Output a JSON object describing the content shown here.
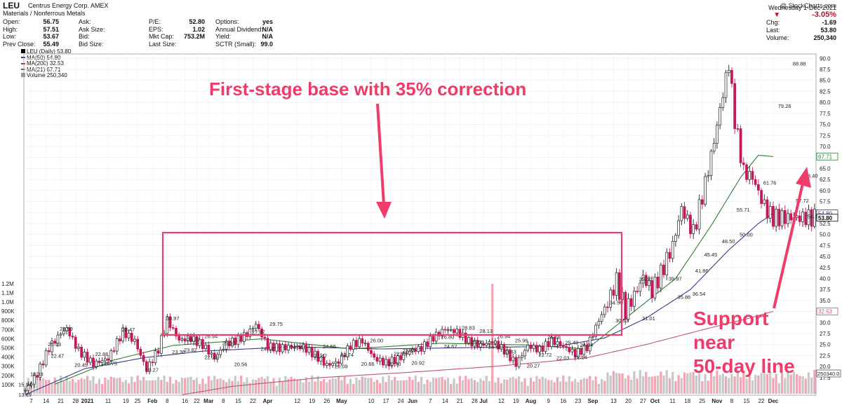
{
  "header": {
    "ticker": "LEU",
    "company": "Centrus Energy Corp. AMEX",
    "sector": "Materials / Nonferrous Metals",
    "copyright": "@ StockCharts.com",
    "col1": [
      {
        "label": "Open:",
        "value": "56.75"
      },
      {
        "label": "High:",
        "value": "57.51"
      },
      {
        "label": "Low:",
        "value": "53.67"
      },
      {
        "label": "Prev Close:",
        "value": "55.49"
      }
    ],
    "col2": [
      {
        "label": "Ask:",
        "value": ""
      },
      {
        "label": "Ask Size:",
        "value": ""
      },
      {
        "label": "Bid:",
        "value": ""
      },
      {
        "label": "Bid Size:",
        "value": ""
      }
    ],
    "col3": [
      {
        "label": "P/E:",
        "value": "52.80"
      },
      {
        "label": "EPS:",
        "value": "1.02"
      },
      {
        "label": "Mkt Cap:",
        "value": "753.2M"
      },
      {
        "label": "Last Size:",
        "value": ""
      }
    ],
    "col4": [
      {
        "label": "Options:",
        "value": "yes"
      },
      {
        "label": "Annual Dividend:",
        "value": "N/A"
      },
      {
        "label": "Yield:",
        "value": "N/A"
      },
      {
        "label": "SCTR (Small):",
        "value": "99.0"
      }
    ],
    "date": "Wednesday  1-Dec-2021",
    "change_pct": "-3.05%",
    "chg_label": "Chg:",
    "chg_value": "-1.69",
    "last_label": "Last:",
    "last_value": "53.80",
    "volume_label": "Volume:",
    "volume_value": "250,340"
  },
  "legend": [
    {
      "text": "LEU (Daily) 53.80",
      "color": "#000000"
    },
    {
      "text": "MA(50) 54.80",
      "color": "#333399"
    },
    {
      "text": "MA(200) 32.53",
      "color": "#b03050"
    },
    {
      "text": "MA(21) 67.71",
      "color": "#2e7d32"
    },
    {
      "text": "Volume 250,340",
      "color": "#555555"
    }
  ],
  "annotations": {
    "title": "First-stage base with 35% correction",
    "support_lines": [
      "Support",
      "near",
      "50-day line"
    ]
  },
  "chart_data": {
    "type": "candlestick",
    "title": "LEU (Daily) 53.80",
    "ylim": [
      13.5,
      91
    ],
    "y_ticks": [
      "17.5",
      "20.0",
      "22.5",
      "25.0",
      "27.5",
      "30.0",
      "32.5",
      "35.0",
      "37.5",
      "40.0",
      "42.5",
      "45.0",
      "47.5",
      "50.0",
      "52.5",
      "55.0",
      "57.5",
      "60.0",
      "62.5",
      "65.0",
      "67.5",
      "70.0",
      "72.5",
      "75.0",
      "77.5",
      "80.0",
      "82.5",
      "85.0",
      "87.5",
      "90.0"
    ],
    "y_tick_values": [
      17.5,
      20,
      22.5,
      25,
      27.5,
      30,
      32.5,
      35,
      37.5,
      40,
      42.5,
      45,
      47.5,
      50,
      52.5,
      55,
      57.5,
      60,
      62.5,
      65,
      67.5,
      70,
      72.5,
      75,
      77.5,
      80,
      82.5,
      85,
      87.5,
      90
    ],
    "x_axis_labels": [
      "7",
      "14",
      "21",
      "28",
      "2021",
      "11",
      "19",
      "25",
      "Feb",
      "8",
      "16",
      "22",
      "Mar",
      "8",
      "15",
      "22",
      "Apr",
      "12",
      "19",
      "26",
      "May",
      "10",
      "17",
      "24",
      "Jun",
      "7",
      "14",
      "21",
      "28",
      "Jul",
      "12",
      "19",
      "Aug",
      "9",
      "16",
      "23",
      "Sep",
      "13",
      "20",
      "27",
      "Oct",
      "11",
      "18",
      "25",
      "Nov",
      "8",
      "15",
      "22",
      "Dec"
    ],
    "x_axis_label_index": [
      2,
      7,
      12,
      17,
      21,
      28,
      34,
      38,
      43,
      48,
      54,
      58,
      62,
      67,
      72,
      77,
      82,
      92,
      97,
      102,
      107,
      117,
      122,
      127,
      131,
      137,
      142,
      147,
      152,
      155,
      161,
      166,
      171,
      177,
      182,
      187,
      192,
      199,
      204,
      209,
      213,
      219,
      224,
      229,
      234,
      239,
      244,
      249,
      253
    ],
    "volume_ticks": [
      "100K",
      "200K",
      "300K",
      "400K",
      "500K",
      "600K",
      "700K",
      "800K",
      "900K",
      "1.0M",
      "1.1M",
      "1.2M"
    ],
    "volume_tick_values": [
      100000,
      200000,
      300000,
      400000,
      500000,
      600000,
      700000,
      800000,
      900000,
      1000000,
      1100000,
      1200000
    ],
    "volume_last": "250340.0",
    "ma_last": {
      "ma21": "67.71",
      "ma50": "54.80",
      "ma200": "32.53",
      "price": "53.80"
    },
    "price_points": [
      [
        0,
        14.6
      ],
      [
        4,
        18.3
      ],
      [
        8,
        24.2
      ],
      [
        12,
        27.6
      ],
      [
        14,
        28.6
      ],
      [
        18,
        23.6
      ],
      [
        23,
        20.6
      ],
      [
        28,
        21.8
      ],
      [
        33,
        27.9
      ],
      [
        37,
        25.8
      ],
      [
        41,
        19.3
      ],
      [
        45,
        23.9
      ],
      [
        48,
        30.6
      ],
      [
        52,
        26.0
      ],
      [
        56,
        26.4
      ],
      [
        60,
        24.9
      ],
      [
        64,
        21.9
      ],
      [
        68,
        25.2
      ],
      [
        72,
        26.1
      ],
      [
        75,
        27.4
      ],
      [
        78,
        29.6
      ],
      [
        82,
        24.6
      ],
      [
        86,
        24.2
      ],
      [
        90,
        24.5
      ],
      [
        94,
        24.4
      ],
      [
        98,
        22.6
      ],
      [
        102,
        20.3
      ],
      [
        106,
        21.1
      ],
      [
        110,
        24.8
      ],
      [
        114,
        25.9
      ],
      [
        118,
        21.9
      ],
      [
        122,
        20.8
      ],
      [
        126,
        21.7
      ],
      [
        130,
        23.5
      ],
      [
        134,
        24.2
      ],
      [
        138,
        26.6
      ],
      [
        142,
        28.5
      ],
      [
        146,
        27.9
      ],
      [
        150,
        25.7
      ],
      [
        154,
        24.8
      ],
      [
        158,
        25.7
      ],
      [
        162,
        23.7
      ],
      [
        166,
        20.6
      ],
      [
        170,
        24.7
      ],
      [
        174,
        23.8
      ],
      [
        178,
        25.9
      ],
      [
        182,
        24.6
      ],
      [
        186,
        22.9
      ],
      [
        190,
        24.4
      ],
      [
        194,
        30.5
      ],
      [
        197,
        34.4
      ],
      [
        200,
        39.5
      ],
      [
        203,
        32.6
      ],
      [
        206,
        36.2
      ],
      [
        209,
        40.3
      ],
      [
        212,
        37.2
      ],
      [
        215,
        41.1
      ],
      [
        219,
        47.5
      ],
      [
        222,
        55.9
      ],
      [
        226,
        50.4
      ],
      [
        230,
        61.5
      ],
      [
        233,
        71.2
      ],
      [
        236,
        82.0
      ],
      [
        238,
        88.9
      ],
      [
        240,
        76.0
      ],
      [
        243,
        64.2
      ],
      [
        246,
        63.0
      ],
      [
        249,
        57.9
      ],
      [
        251,
        55.3
      ],
      [
        253,
        53.8
      ]
    ],
    "ma21_points": [
      [
        10,
        16.0
      ],
      [
        30,
        21.5
      ],
      [
        50,
        24.8
      ],
      [
        80,
        26.3
      ],
      [
        110,
        24.0
      ],
      [
        140,
        25.3
      ],
      [
        170,
        24.9
      ],
      [
        190,
        24.0
      ],
      [
        205,
        32.0
      ],
      [
        220,
        40.0
      ],
      [
        232,
        52.0
      ],
      [
        242,
        63.0
      ],
      [
        248,
        68.0
      ],
      [
        253,
        67.7
      ]
    ],
    "ma50_points": [
      [
        0,
        13.6
      ],
      [
        20,
        19.5
      ],
      [
        40,
        22.0
      ],
      [
        60,
        23.5
      ],
      [
        90,
        24.5
      ],
      [
        120,
        24.0
      ],
      [
        150,
        24.3
      ],
      [
        180,
        24.6
      ],
      [
        196,
        26.5
      ],
      [
        210,
        31.0
      ],
      [
        225,
        37.5
      ],
      [
        238,
        46.5
      ],
      [
        248,
        52.5
      ],
      [
        253,
        54.8
      ]
    ],
    "ma200_points": [
      [
        53,
        13.6
      ],
      [
        70,
        15.5
      ],
      [
        100,
        17.5
      ],
      [
        130,
        18.7
      ],
      [
        160,
        20.1
      ],
      [
        190,
        22.0
      ],
      [
        210,
        25.0
      ],
      [
        230,
        28.5
      ],
      [
        245,
        31.0
      ],
      [
        253,
        32.53
      ]
    ],
    "price_labels": [
      {
        "text": "18.33",
        "i": 4,
        "v": 18.33
      },
      {
        "text": "15.94",
        "i": 0,
        "v": 15.94
      },
      {
        "text": "13.69",
        "i": 0,
        "v": 13.69
      },
      {
        "text": "25.13",
        "i": 10,
        "v": 25.13
      },
      {
        "text": "28.59",
        "i": 14,
        "v": 28.59
      },
      {
        "text": "22.47",
        "i": 11,
        "v": 22.47
      },
      {
        "text": "20.45",
        "i": 19,
        "v": 20.45
      },
      {
        "text": "22.86",
        "i": 26,
        "v": 22.86
      },
      {
        "text": "20.75",
        "i": 29,
        "v": 20.75
      },
      {
        "text": "28.47",
        "i": 35,
        "v": 28.47
      },
      {
        "text": "19.27",
        "i": 43,
        "v": 19.27
      },
      {
        "text": "30.97",
        "i": 50,
        "v": 30.97
      },
      {
        "text": "26.21",
        "i": 57,
        "v": 26.21
      },
      {
        "text": "23.36",
        "i": 52,
        "v": 23.36
      },
      {
        "text": "23.82",
        "i": 56,
        "v": 23.82
      },
      {
        "text": "26.94",
        "i": 63,
        "v": 26.94
      },
      {
        "text": "25.35",
        "i": 69,
        "v": 25.35
      },
      {
        "text": "22.20",
        "i": 63,
        "v": 22.2
      },
      {
        "text": "20.56",
        "i": 73,
        "v": 20.56
      },
      {
        "text": "27.87",
        "i": 79,
        "v": 27.87
      },
      {
        "text": "29.75",
        "i": 85,
        "v": 29.75
      },
      {
        "text": "24.12",
        "i": 82,
        "v": 24.12
      },
      {
        "text": "24.50",
        "i": 92,
        "v": 24.5
      },
      {
        "text": "24.66",
        "i": 103,
        "v": 24.66
      },
      {
        "text": "22.47",
        "i": 100,
        "v": 22.47
      },
      {
        "text": "22.74",
        "i": 109,
        "v": 22.74
      },
      {
        "text": "20.09",
        "i": 107,
        "v": 20.09
      },
      {
        "text": "20.66",
        "i": 116,
        "v": 20.66
      },
      {
        "text": "26.00",
        "i": 119,
        "v": 26.0
      },
      {
        "text": "22.93",
        "i": 127,
        "v": 22.93
      },
      {
        "text": "23.67",
        "i": 130,
        "v": 23.67
      },
      {
        "text": "20.70",
        "i": 125,
        "v": 20.7
      },
      {
        "text": "20.92",
        "i": 133,
        "v": 20.92
      },
      {
        "text": "26.80",
        "i": 143,
        "v": 26.8
      },
      {
        "text": "24.67",
        "i": 144,
        "v": 24.67
      },
      {
        "text": "28.83",
        "i": 150,
        "v": 28.83
      },
      {
        "text": "28.13",
        "i": 156,
        "v": 28.13
      },
      {
        "text": "25.56",
        "i": 153,
        "v": 25.56
      },
      {
        "text": "26.94",
        "i": 162,
        "v": 26.94
      },
      {
        "text": "24.50",
        "i": 159,
        "v": 24.5
      },
      {
        "text": "25.96",
        "i": 168,
        "v": 25.96
      },
      {
        "text": "23.43",
        "i": 164,
        "v": 23.43
      },
      {
        "text": "20.27",
        "i": 172,
        "v": 20.27
      },
      {
        "text": "26.68",
        "i": 179,
        "v": 26.68
      },
      {
        "text": "22.72",
        "i": 176,
        "v": 22.72
      },
      {
        "text": "25.49",
        "i": 185,
        "v": 25.49
      },
      {
        "text": "22.03",
        "i": 182,
        "v": 22.03
      },
      {
        "text": "24.94",
        "i": 190,
        "v": 24.94
      },
      {
        "text": "22.14",
        "i": 188,
        "v": 22.14
      },
      {
        "text": "34.56",
        "i": 200,
        "v": 34.56
      },
      {
        "text": "30.53",
        "i": 202,
        "v": 30.53
      },
      {
        "text": "39.90",
        "i": 210,
        "v": 39.9
      },
      {
        "text": "31.01",
        "i": 211,
        "v": 31.01
      },
      {
        "text": "39.97",
        "i": 220,
        "v": 39.97
      },
      {
        "text": "35.86",
        "i": 223,
        "v": 35.86
      },
      {
        "text": "41.86",
        "i": 229,
        "v": 41.86
      },
      {
        "text": "36.54",
        "i": 228,
        "v": 36.54
      },
      {
        "text": "45.45",
        "i": 232,
        "v": 45.45
      },
      {
        "text": "48.50",
        "i": 238,
        "v": 48.5
      },
      {
        "text": "55.71",
        "i": 243,
        "v": 55.71
      },
      {
        "text": "50.00",
        "i": 244,
        "v": 50.0
      },
      {
        "text": "61.76",
        "i": 252,
        "v": 61.76
      },
      {
        "text": "79.26",
        "i": 257,
        "v": 79.26
      },
      {
        "text": "88.88",
        "i": 262,
        "v": 88.88
      },
      {
        "text": "63.40",
        "i": 266,
        "v": 63.4
      },
      {
        "text": "57.72",
        "i": 263,
        "v": 57.72
      },
      {
        "text": "54.16",
        "i": 267,
        "v": 54.16
      }
    ]
  }
}
